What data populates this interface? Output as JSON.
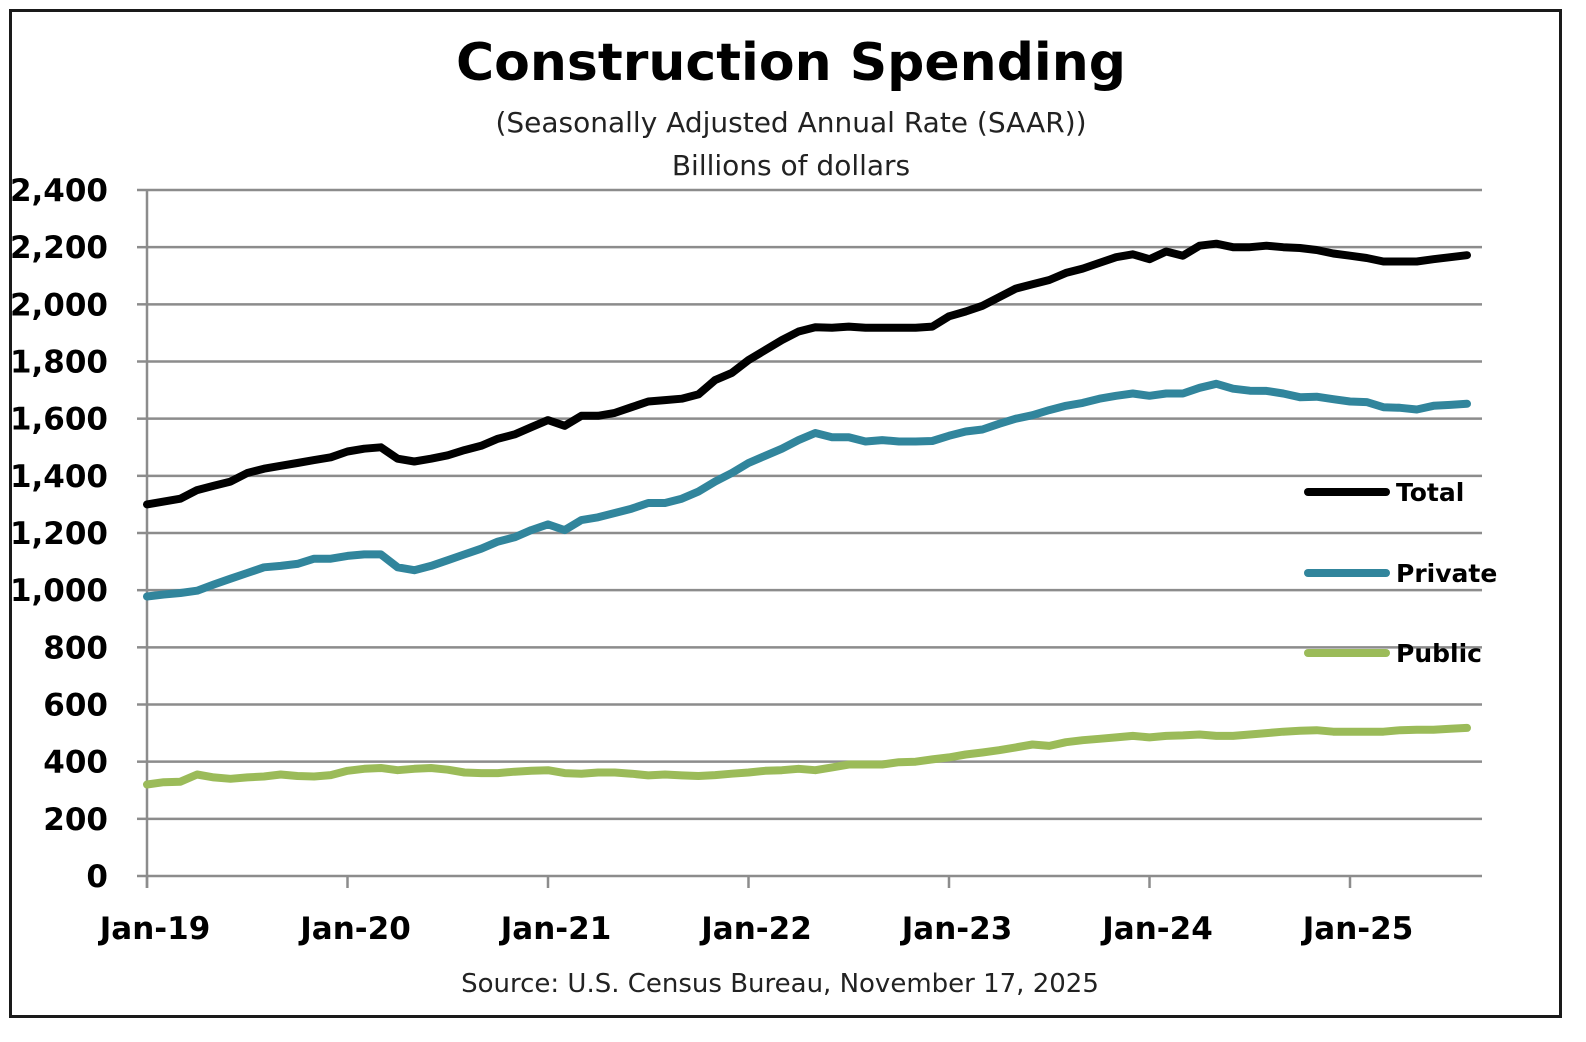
{
  "chart_data": {
    "type": "line",
    "title": "Construction Spending",
    "subtitle": "(Seasonally Adjusted Annual Rate (SAAR))",
    "unit_label": "Billions of dollars",
    "source": "Source: U.S. Census Bureau, November 17, 2025",
    "ylim": [
      0,
      2400
    ],
    "yticks": [
      {
        "value": 0,
        "label": "0"
      },
      {
        "value": 200,
        "label": "200"
      },
      {
        "value": 400,
        "label": "400"
      },
      {
        "value": 600,
        "label": "600"
      },
      {
        "value": 800,
        "label": "800"
      },
      {
        "value": 1000,
        "label": "1,000"
      },
      {
        "value": 1200,
        "label": "1,200"
      },
      {
        "value": 1400,
        "label": "1,400"
      },
      {
        "value": 1600,
        "label": "1,600"
      },
      {
        "value": 1800,
        "label": "1,800"
      },
      {
        "value": 2000,
        "label": "2,000"
      },
      {
        "value": 2200,
        "label": "2,200"
      },
      {
        "value": 2400,
        "label": "2,400"
      }
    ],
    "xticks": [
      "Jan-19",
      "Jan-20",
      "Jan-21",
      "Jan-22",
      "Jan-23",
      "Jan-24",
      "Jan-25"
    ],
    "x": [
      "Jan-19",
      "Feb-19",
      "Mar-19",
      "Apr-19",
      "May-19",
      "Jun-19",
      "Jul-19",
      "Aug-19",
      "Sep-19",
      "Oct-19",
      "Nov-19",
      "Dec-19",
      "Jan-20",
      "Feb-20",
      "Mar-20",
      "Apr-20",
      "May-20",
      "Jun-20",
      "Jul-20",
      "Aug-20",
      "Sep-20",
      "Oct-20",
      "Nov-20",
      "Dec-20",
      "Jan-21",
      "Feb-21",
      "Mar-21",
      "Apr-21",
      "May-21",
      "Jun-21",
      "Jul-21",
      "Aug-21",
      "Sep-21",
      "Oct-21",
      "Nov-21",
      "Dec-21",
      "Jan-22",
      "Feb-22",
      "Mar-22",
      "Apr-22",
      "May-22",
      "Jun-22",
      "Jul-22",
      "Aug-22",
      "Sep-22",
      "Oct-22",
      "Nov-22",
      "Dec-22",
      "Jan-23",
      "Feb-23",
      "Mar-23",
      "Apr-23",
      "May-23",
      "Jun-23",
      "Jul-23",
      "Aug-23",
      "Sep-23",
      "Oct-23",
      "Nov-23",
      "Dec-23",
      "Jan-24",
      "Feb-24",
      "Mar-24",
      "Apr-24",
      "May-24",
      "Jun-24",
      "Jul-24",
      "Aug-24",
      "Sep-24",
      "Oct-24",
      "Nov-24",
      "Dec-24",
      "Jan-25",
      "Feb-25",
      "Mar-25",
      "Apr-25",
      "May-25",
      "Jun-25",
      "Jul-25",
      "Aug-25"
    ],
    "legend_placement": "right",
    "grid": true,
    "series": [
      {
        "name": "Total",
        "color": "#000000",
        "values": [
          1300,
          1310,
          1320,
          1350,
          1365,
          1380,
          1410,
          1425,
          1435,
          1445,
          1455,
          1465,
          1485,
          1495,
          1500,
          1460,
          1450,
          1460,
          1472,
          1490,
          1505,
          1530,
          1545,
          1570,
          1595,
          1575,
          1610,
          1610,
          1620,
          1640,
          1660,
          1665,
          1670,
          1685,
          1735,
          1760,
          1805,
          1840,
          1875,
          1905,
          1920,
          1918,
          1922,
          1918,
          1918,
          1918,
          1918,
          1922,
          1958,
          1975,
          1995,
          2025,
          2055,
          2070,
          2085,
          2110,
          2125,
          2145,
          2165,
          2175,
          2158,
          2185,
          2170,
          2205,
          2212,
          2200,
          2200,
          2205,
          2200,
          2197,
          2190,
          2178,
          2170,
          2162,
          2150,
          2150,
          2150,
          2158,
          2165,
          2172
        ]
      },
      {
        "name": "Private",
        "color": "#31859C",
        "values": [
          978,
          985,
          990,
          998,
          1020,
          1040,
          1060,
          1080,
          1085,
          1092,
          1110,
          1110,
          1120,
          1125,
          1125,
          1080,
          1070,
          1085,
          1105,
          1125,
          1145,
          1170,
          1185,
          1210,
          1230,
          1210,
          1245,
          1255,
          1270,
          1285,
          1305,
          1305,
          1320,
          1345,
          1380,
          1410,
          1445,
          1470,
          1495,
          1525,
          1550,
          1535,
          1535,
          1520,
          1525,
          1520,
          1520,
          1522,
          1540,
          1555,
          1562,
          1582,
          1600,
          1612,
          1630,
          1645,
          1655,
          1670,
          1680,
          1688,
          1680,
          1688,
          1688,
          1708,
          1722,
          1705,
          1698,
          1697,
          1688,
          1675,
          1677,
          1668,
          1660,
          1658,
          1640,
          1638,
          1632,
          1645,
          1648,
          1652
        ]
      },
      {
        "name": "Public",
        "color": "#9BBB59",
        "values": [
          320,
          328,
          330,
          355,
          345,
          340,
          345,
          348,
          355,
          350,
          348,
          353,
          368,
          375,
          378,
          370,
          375,
          378,
          372,
          362,
          360,
          360,
          365,
          368,
          370,
          360,
          358,
          362,
          362,
          358,
          352,
          355,
          352,
          350,
          353,
          358,
          362,
          368,
          370,
          375,
          370,
          380,
          390,
          390,
          390,
          398,
          400,
          408,
          415,
          425,
          432,
          440,
          450,
          460,
          455,
          468,
          475,
          480,
          485,
          490,
          485,
          490,
          492,
          495,
          490,
          490,
          495,
          500,
          505,
          508,
          510,
          505,
          505,
          505,
          505,
          510,
          512,
          512,
          515,
          518
        ]
      }
    ]
  }
}
